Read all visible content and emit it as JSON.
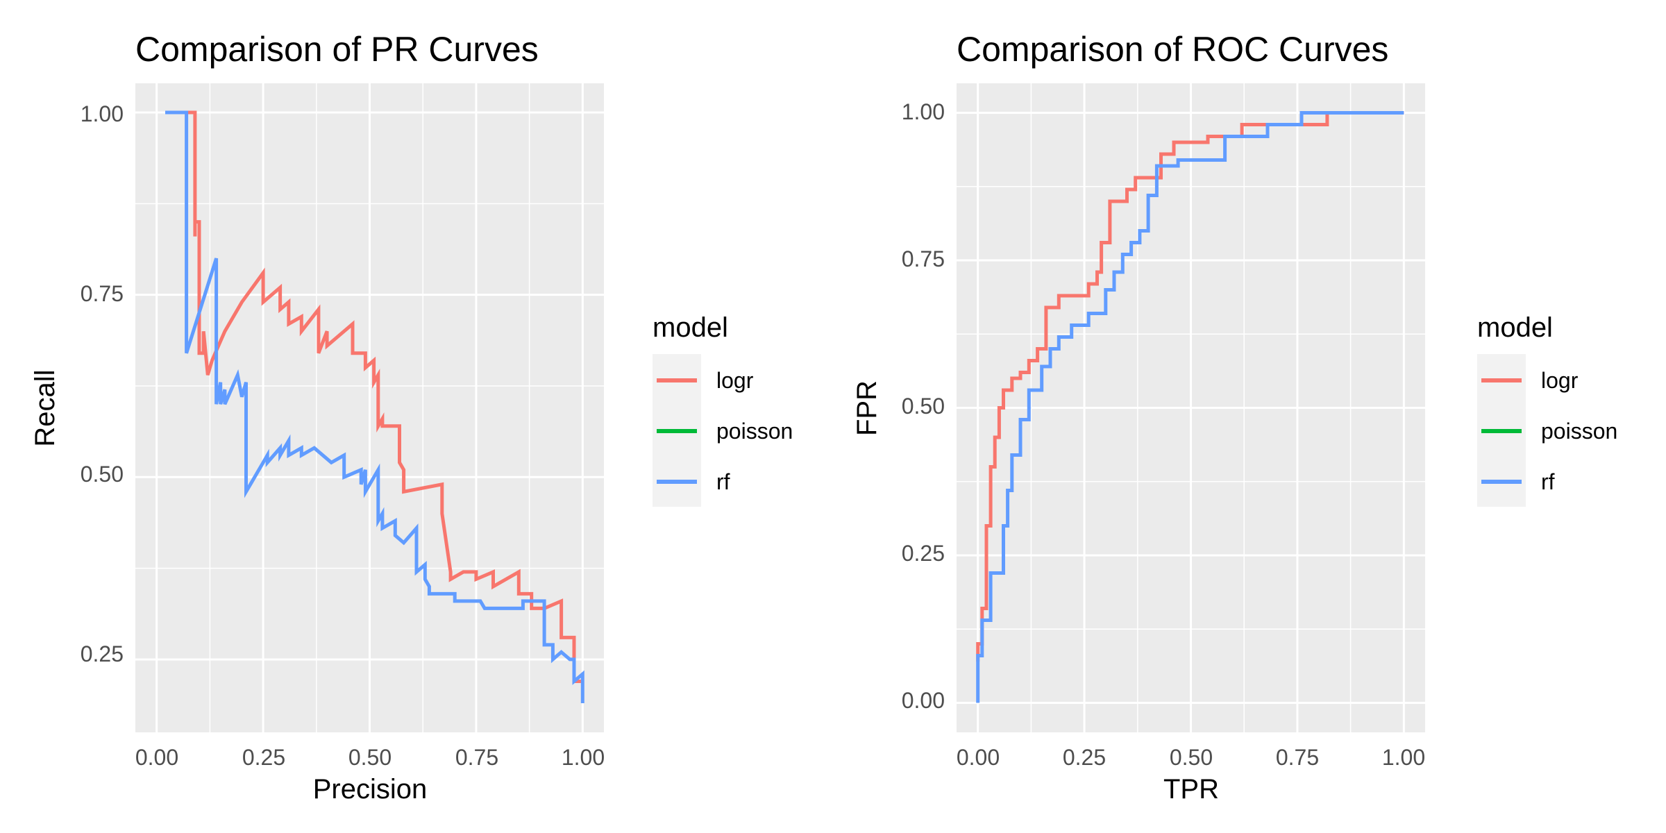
{
  "chart_data": [
    {
      "type": "line",
      "title": "Comparison of PR Curves",
      "xlabel": "Precision",
      "ylabel": "Recall",
      "xlim": [
        -0.05,
        1.05
      ],
      "ylim": [
        0.15,
        1.04
      ],
      "xticks": [
        "0.00",
        "0.25",
        "0.50",
        "0.75",
        "1.00"
      ],
      "yticks": [
        "0.25",
        "0.50",
        "0.75",
        "1.00"
      ],
      "legend_title": "model",
      "legend_position": "right",
      "grid": true,
      "series": [
        {
          "name": "logr",
          "color": "#F8766D",
          "x": [
            0.02,
            0.08,
            0.09,
            0.09,
            0.09,
            0.1,
            0.1,
            0.11,
            0.11,
            0.12,
            0.12,
            0.13,
            0.16,
            0.2,
            0.25,
            0.25,
            0.29,
            0.29,
            0.31,
            0.31,
            0.34,
            0.34,
            0.38,
            0.38,
            0.4,
            0.4,
            0.46,
            0.46,
            0.49,
            0.49,
            0.51,
            0.51,
            0.52,
            0.52,
            0.53,
            0.53,
            0.57,
            0.57,
            0.58,
            0.58,
            0.67,
            0.67,
            0.69,
            0.69,
            0.72,
            0.74,
            0.75,
            0.75,
            0.79,
            0.79,
            0.85,
            0.85,
            0.88,
            0.88,
            0.91,
            0.95,
            0.95,
            0.98,
            0.98,
            1.0
          ],
          "y": [
            1.0,
            1.0,
            1.0,
            0.83,
            0.85,
            0.85,
            0.67,
            0.67,
            0.7,
            0.64,
            0.64,
            0.66,
            0.7,
            0.74,
            0.78,
            0.74,
            0.76,
            0.73,
            0.74,
            0.71,
            0.72,
            0.7,
            0.73,
            0.67,
            0.7,
            0.68,
            0.71,
            0.67,
            0.67,
            0.65,
            0.66,
            0.63,
            0.64,
            0.57,
            0.58,
            0.57,
            0.57,
            0.52,
            0.51,
            0.48,
            0.49,
            0.45,
            0.37,
            0.36,
            0.37,
            0.37,
            0.37,
            0.36,
            0.37,
            0.35,
            0.37,
            0.34,
            0.34,
            0.32,
            0.32,
            0.33,
            0.28,
            0.28,
            0.22,
            0.22
          ]
        },
        {
          "name": "poisson",
          "color": "#00BA38",
          "x": [],
          "y": []
        },
        {
          "name": "rf",
          "color": "#619CFF",
          "x": [
            0.02,
            0.07,
            0.07,
            0.14,
            0.14,
            0.15,
            0.15,
            0.16,
            0.16,
            0.19,
            0.2,
            0.21,
            0.21,
            0.22,
            0.22,
            0.26,
            0.26,
            0.29,
            0.29,
            0.31,
            0.31,
            0.34,
            0.34,
            0.37,
            0.39,
            0.41,
            0.44,
            0.44,
            0.48,
            0.48,
            0.49,
            0.49,
            0.52,
            0.52,
            0.53,
            0.53,
            0.56,
            0.56,
            0.58,
            0.61,
            0.61,
            0.63,
            0.63,
            0.64,
            0.64,
            0.7,
            0.7,
            0.74,
            0.76,
            0.77,
            0.8,
            0.82,
            0.86,
            0.86,
            0.91,
            0.91,
            0.93,
            0.93,
            0.95,
            0.97,
            0.98,
            0.98,
            1.0,
            1.0
          ],
          "y": [
            1.0,
            1.0,
            0.67,
            0.8,
            0.6,
            0.63,
            0.6,
            0.62,
            0.6,
            0.64,
            0.61,
            0.63,
            0.48,
            0.49,
            0.49,
            0.53,
            0.52,
            0.54,
            0.53,
            0.55,
            0.53,
            0.54,
            0.53,
            0.54,
            0.53,
            0.52,
            0.53,
            0.5,
            0.51,
            0.49,
            0.51,
            0.48,
            0.51,
            0.44,
            0.45,
            0.43,
            0.44,
            0.42,
            0.41,
            0.43,
            0.37,
            0.38,
            0.36,
            0.35,
            0.34,
            0.34,
            0.33,
            0.33,
            0.33,
            0.32,
            0.32,
            0.32,
            0.32,
            0.33,
            0.33,
            0.27,
            0.27,
            0.25,
            0.26,
            0.25,
            0.25,
            0.22,
            0.23,
            0.19
          ]
        }
      ]
    },
    {
      "type": "line",
      "title": "Comparison of ROC Curves",
      "xlabel": "TPR",
      "ylabel": "FPR",
      "xlim": [
        -0.05,
        1.05
      ],
      "ylim": [
        -0.05,
        1.05
      ],
      "xticks": [
        "0.00",
        "0.25",
        "0.50",
        "0.75",
        "1.00"
      ],
      "yticks": [
        "0.00",
        "0.25",
        "0.50",
        "0.75",
        "1.00"
      ],
      "legend_title": "model",
      "legend_position": "right",
      "grid": true,
      "series": [
        {
          "name": "logr",
          "color": "#F8766D",
          "x": [
            0.0,
            0.0,
            0.01,
            0.01,
            0.02,
            0.02,
            0.03,
            0.03,
            0.04,
            0.04,
            0.05,
            0.05,
            0.06,
            0.06,
            0.08,
            0.08,
            0.1,
            0.1,
            0.12,
            0.12,
            0.14,
            0.14,
            0.16,
            0.16,
            0.19,
            0.19,
            0.26,
            0.26,
            0.28,
            0.28,
            0.29,
            0.29,
            0.31,
            0.31,
            0.35,
            0.35,
            0.37,
            0.37,
            0.43,
            0.43,
            0.46,
            0.46,
            0.54,
            0.54,
            0.62,
            0.62,
            0.82,
            0.82,
            1.0
          ],
          "y": [
            0.07,
            0.1,
            0.1,
            0.16,
            0.16,
            0.3,
            0.3,
            0.4,
            0.4,
            0.45,
            0.45,
            0.5,
            0.5,
            0.53,
            0.53,
            0.55,
            0.55,
            0.56,
            0.56,
            0.58,
            0.58,
            0.6,
            0.6,
            0.67,
            0.67,
            0.69,
            0.69,
            0.71,
            0.71,
            0.73,
            0.73,
            0.78,
            0.78,
            0.85,
            0.85,
            0.87,
            0.87,
            0.89,
            0.89,
            0.93,
            0.93,
            0.95,
            0.95,
            0.96,
            0.96,
            0.98,
            0.98,
            1.0,
            1.0
          ]
        },
        {
          "name": "poisson",
          "color": "#00BA38",
          "x": [],
          "y": []
        },
        {
          "name": "rf",
          "color": "#619CFF",
          "x": [
            0.0,
            0.0,
            0.01,
            0.01,
            0.03,
            0.03,
            0.06,
            0.06,
            0.07,
            0.07,
            0.08,
            0.08,
            0.1,
            0.1,
            0.12,
            0.12,
            0.15,
            0.15,
            0.17,
            0.17,
            0.19,
            0.19,
            0.22,
            0.22,
            0.26,
            0.26,
            0.3,
            0.3,
            0.32,
            0.32,
            0.34,
            0.34,
            0.36,
            0.36,
            0.38,
            0.38,
            0.4,
            0.4,
            0.42,
            0.42,
            0.47,
            0.47,
            0.58,
            0.58,
            0.68,
            0.68,
            0.76,
            0.76,
            1.0
          ],
          "y": [
            0.0,
            0.08,
            0.08,
            0.14,
            0.14,
            0.22,
            0.22,
            0.3,
            0.3,
            0.36,
            0.36,
            0.42,
            0.42,
            0.48,
            0.48,
            0.53,
            0.53,
            0.57,
            0.57,
            0.6,
            0.6,
            0.62,
            0.62,
            0.64,
            0.64,
            0.66,
            0.66,
            0.7,
            0.7,
            0.73,
            0.73,
            0.76,
            0.76,
            0.78,
            0.78,
            0.8,
            0.8,
            0.86,
            0.86,
            0.91,
            0.91,
            0.92,
            0.92,
            0.96,
            0.96,
            0.98,
            0.98,
            1.0,
            1.0
          ]
        }
      ]
    }
  ]
}
